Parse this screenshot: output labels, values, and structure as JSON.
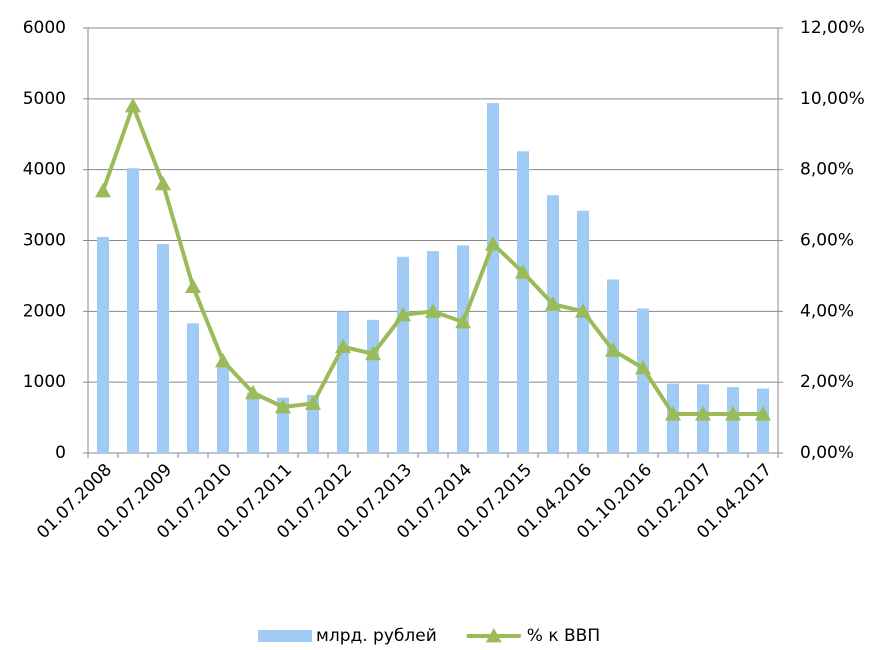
{
  "chart_data": {
    "type": "bar_line",
    "categories": [
      "01.07.2008",
      null,
      "01.07.2009",
      null,
      "01.07.2010",
      null,
      "01.07.2011",
      null,
      "01.07.2012",
      null,
      "01.07.2013",
      null,
      "01.07.2014",
      null,
      "01.07.2015",
      null,
      "01.04.2016",
      null,
      "01.10.2016",
      null,
      "01.02.2017",
      null,
      "01.04.2017"
    ],
    "series": [
      {
        "name": "млрд. рублей",
        "type": "bar",
        "color": "#9fcbf5",
        "values": [
          3050,
          4020,
          2950,
          1830,
          1250,
          850,
          780,
          820,
          2000,
          1880,
          2770,
          2850,
          2930,
          4940,
          4260,
          3640,
          3420,
          2450,
          2040,
          980,
          970,
          930,
          910
        ]
      },
      {
        "name": "% к ВВП",
        "type": "line",
        "axis": "y2",
        "color": "#9bbb59",
        "values": [
          7.4,
          9.8,
          7.6,
          4.7,
          2.6,
          1.7,
          1.3,
          1.4,
          3.0,
          2.8,
          3.9,
          4.0,
          3.7,
          5.9,
          5.1,
          4.2,
          4.0,
          2.9,
          2.4,
          1.1,
          1.1,
          1.1,
          1.1
        ]
      }
    ],
    "ylim": [
      0,
      6000
    ],
    "yticks": [
      0,
      1000,
      2000,
      3000,
      4000,
      5000,
      6000
    ],
    "y2lim": [
      0,
      12
    ],
    "y2ticks": [
      {
        "value": 0,
        "label": "0,00%"
      },
      {
        "value": 2,
        "label": "2,00%"
      },
      {
        "value": 4,
        "label": "4,00%"
      },
      {
        "value": 6,
        "label": "6,00%"
      },
      {
        "value": 8,
        "label": "8,00%"
      },
      {
        "value": 10,
        "label": "10,00%"
      },
      {
        "value": 12,
        "label": "12,00%"
      }
    ],
    "grid": true,
    "legend": "bottom"
  }
}
